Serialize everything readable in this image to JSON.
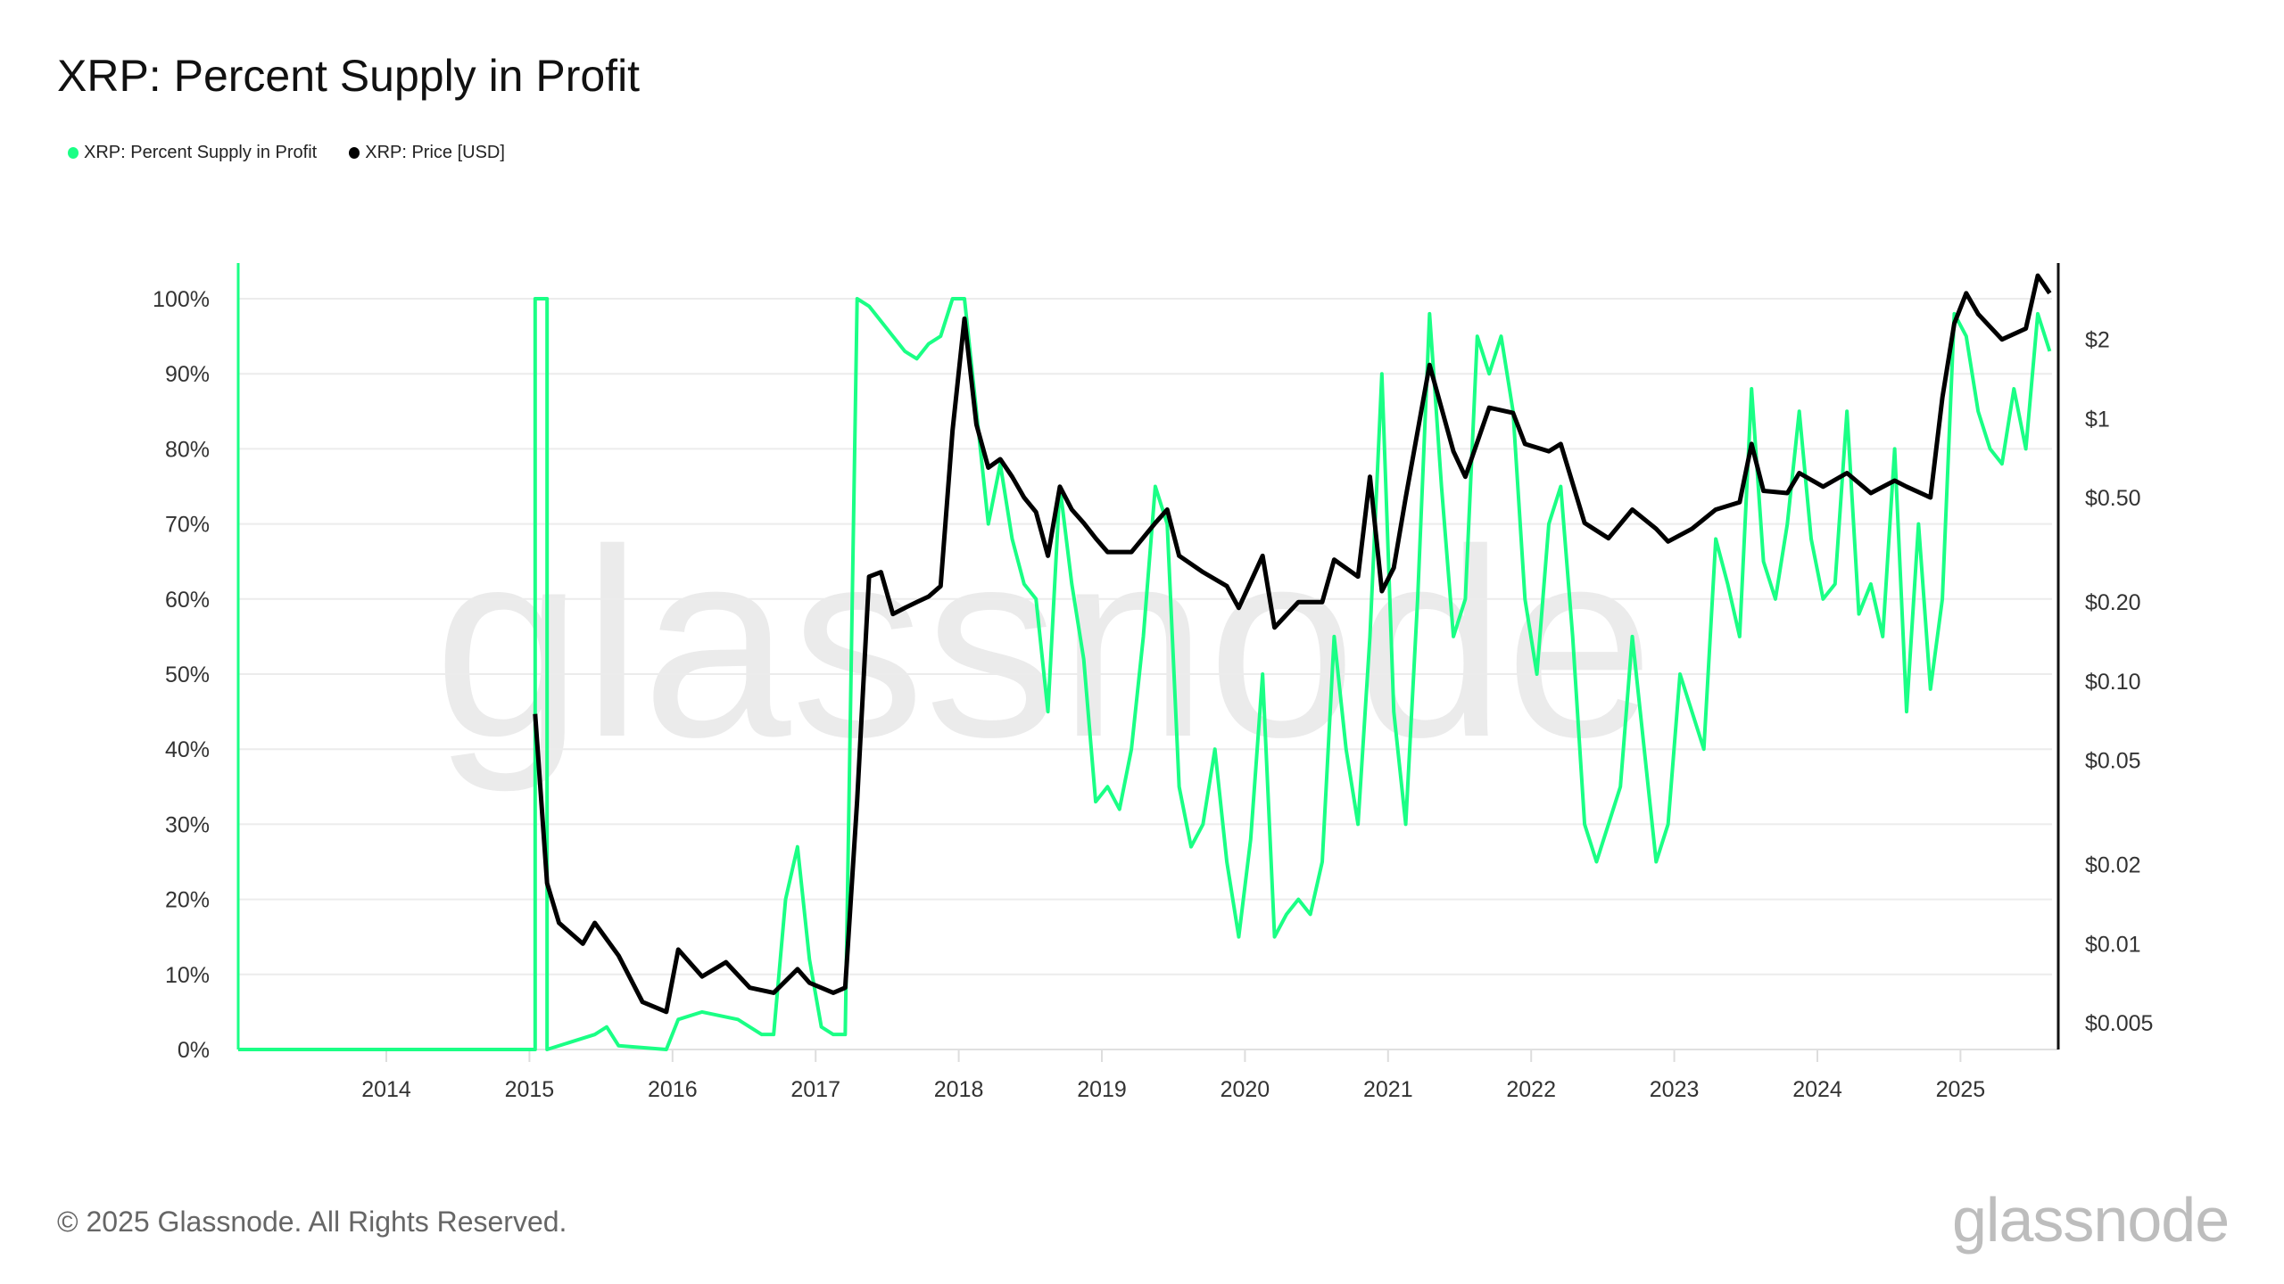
{
  "title": "XRP: Percent Supply in Profit",
  "legend": [
    {
      "label": "XRP: Percent Supply in Profit",
      "color": "#1aff85"
    },
    {
      "label": "XRP: Price [USD]",
      "color": "#000000"
    }
  ],
  "footer": "© 2025 Glassnode. All Rights Reserved.",
  "logo": "glassnode",
  "watermark": "glassnode",
  "chart_data": {
    "type": "line",
    "title": "XRP: Percent Supply in Profit",
    "grid": true,
    "legend_position": "top-left",
    "x_ticks": [
      "2014",
      "2015",
      "2016",
      "2017",
      "2018",
      "2019",
      "2020",
      "2021",
      "2022",
      "2023",
      "2024",
      "2025"
    ],
    "y_left": {
      "ticks": [
        "0%",
        "10%",
        "20%",
        "30%",
        "40%",
        "50%",
        "60%",
        "70%",
        "80%",
        "90%",
        "100%"
      ],
      "range": [
        0,
        100
      ],
      "scale": "linear"
    },
    "y_right": {
      "ticks": [
        {
          "label": "$0.005",
          "value": 0.005
        },
        {
          "label": "$0.01",
          "value": 0.01
        },
        {
          "label": "$0.02",
          "value": 0.02
        },
        {
          "label": "$0.05",
          "value": 0.05
        },
        {
          "label": "$0.10",
          "value": 0.1
        },
        {
          "label": "$0.20",
          "value": 0.2
        },
        {
          "label": "$0.50",
          "value": 0.5
        },
        {
          "label": "$1",
          "value": 1
        },
        {
          "label": "$2",
          "value": 2
        }
      ],
      "scale": "log"
    },
    "series": [
      {
        "name": "XRP: Percent Supply in Profit",
        "axis": "left",
        "color": "#1aff85",
        "points": [
          [
            "2013-01",
            0
          ],
          [
            "2014-06",
            0
          ],
          [
            "2015-01",
            0
          ],
          [
            "2015-01",
            100
          ],
          [
            "2015-02",
            100
          ],
          [
            "2015-02",
            0
          ],
          [
            "2015-06",
            2
          ],
          [
            "2015-07",
            3
          ],
          [
            "2015-08",
            0.5
          ],
          [
            "2015-12",
            0
          ],
          [
            "2016-01",
            4
          ],
          [
            "2016-03",
            5
          ],
          [
            "2016-06",
            4
          ],
          [
            "2016-08",
            2
          ],
          [
            "2016-09",
            2
          ],
          [
            "2016-10",
            20
          ],
          [
            "2016-11",
            27
          ],
          [
            "2016-12",
            12
          ],
          [
            "2017-01",
            3
          ],
          [
            "2017-02",
            2
          ],
          [
            "2017-03",
            2
          ],
          [
            "2017-04",
            100
          ],
          [
            "2017-05",
            99
          ],
          [
            "2017-06",
            97
          ],
          [
            "2017-07",
            95
          ],
          [
            "2017-08",
            93
          ],
          [
            "2017-09",
            92
          ],
          [
            "2017-10",
            94
          ],
          [
            "2017-11",
            95
          ],
          [
            "2017-12",
            100
          ],
          [
            "2018-01",
            100
          ],
          [
            "2018-02",
            85
          ],
          [
            "2018-03",
            70
          ],
          [
            "2018-04",
            78
          ],
          [
            "2018-05",
            68
          ],
          [
            "2018-06",
            62
          ],
          [
            "2018-07",
            60
          ],
          [
            "2018-08",
            45
          ],
          [
            "2018-09",
            75
          ],
          [
            "2018-10",
            62
          ],
          [
            "2018-11",
            52
          ],
          [
            "2018-12",
            33
          ],
          [
            "2019-01",
            35
          ],
          [
            "2019-02",
            32
          ],
          [
            "2019-03",
            40
          ],
          [
            "2019-04",
            55
          ],
          [
            "2019-05",
            75
          ],
          [
            "2019-06",
            70
          ],
          [
            "2019-07",
            35
          ],
          [
            "2019-08",
            27
          ],
          [
            "2019-09",
            30
          ],
          [
            "2019-10",
            40
          ],
          [
            "2019-11",
            25
          ],
          [
            "2019-12",
            15
          ],
          [
            "2020-01",
            28
          ],
          [
            "2020-02",
            50
          ],
          [
            "2020-03",
            15
          ],
          [
            "2020-04",
            18
          ],
          [
            "2020-05",
            20
          ],
          [
            "2020-06",
            18
          ],
          [
            "2020-07",
            25
          ],
          [
            "2020-08",
            55
          ],
          [
            "2020-09",
            40
          ],
          [
            "2020-10",
            30
          ],
          [
            "2020-11",
            55
          ],
          [
            "2020-12",
            90
          ],
          [
            "2021-01",
            45
          ],
          [
            "2021-02",
            30
          ],
          [
            "2021-03",
            60
          ],
          [
            "2021-04",
            98
          ],
          [
            "2021-05",
            75
          ],
          [
            "2021-06",
            55
          ],
          [
            "2021-07",
            60
          ],
          [
            "2021-08",
            95
          ],
          [
            "2021-09",
            90
          ],
          [
            "2021-10",
            95
          ],
          [
            "2021-11",
            85
          ],
          [
            "2021-12",
            60
          ],
          [
            "2022-01",
            50
          ],
          [
            "2022-02",
            70
          ],
          [
            "2022-03",
            75
          ],
          [
            "2022-04",
            55
          ],
          [
            "2022-05",
            30
          ],
          [
            "2022-06",
            25
          ],
          [
            "2022-07",
            30
          ],
          [
            "2022-08",
            35
          ],
          [
            "2022-09",
            55
          ],
          [
            "2022-10",
            40
          ],
          [
            "2022-11",
            25
          ],
          [
            "2022-12",
            30
          ],
          [
            "2023-01",
            50
          ],
          [
            "2023-02",
            45
          ],
          [
            "2023-03",
            40
          ],
          [
            "2023-04",
            68
          ],
          [
            "2023-05",
            62
          ],
          [
            "2023-06",
            55
          ],
          [
            "2023-07",
            88
          ],
          [
            "2023-08",
            65
          ],
          [
            "2023-09",
            60
          ],
          [
            "2023-10",
            70
          ],
          [
            "2023-11",
            85
          ],
          [
            "2023-12",
            68
          ],
          [
            "2024-01",
            60
          ],
          [
            "2024-02",
            62
          ],
          [
            "2024-03",
            85
          ],
          [
            "2024-04",
            58
          ],
          [
            "2024-05",
            62
          ],
          [
            "2024-06",
            55
          ],
          [
            "2024-07",
            80
          ],
          [
            "2024-08",
            45
          ],
          [
            "2024-09",
            70
          ],
          [
            "2024-10",
            48
          ],
          [
            "2024-11",
            60
          ],
          [
            "2024-12",
            98
          ],
          [
            "2025-01",
            95
          ],
          [
            "2025-02",
            85
          ],
          [
            "2025-03",
            80
          ],
          [
            "2025-04",
            78
          ],
          [
            "2025-05",
            88
          ],
          [
            "2025-06",
            80
          ],
          [
            "2025-07",
            98
          ],
          [
            "2025-08",
            93
          ]
        ]
      },
      {
        "name": "XRP: Price [USD]",
        "axis": "right",
        "color": "#000000",
        "points": [
          [
            "2015-01",
            0.075
          ],
          [
            "2015-02",
            0.017
          ],
          [
            "2015-03",
            0.012
          ],
          [
            "2015-05",
            0.01
          ],
          [
            "2015-06",
            0.012
          ],
          [
            "2015-08",
            0.009
          ],
          [
            "2015-10",
            0.006
          ],
          [
            "2015-12",
            0.0055
          ],
          [
            "2016-01",
            0.0095
          ],
          [
            "2016-03",
            0.0075
          ],
          [
            "2016-05",
            0.0085
          ],
          [
            "2016-07",
            0.0068
          ],
          [
            "2016-09",
            0.0065
          ],
          [
            "2016-11",
            0.008
          ],
          [
            "2016-12",
            0.0071
          ],
          [
            "2017-02",
            0.0065
          ],
          [
            "2017-03",
            0.0068
          ],
          [
            "2017-04",
            0.035
          ],
          [
            "2017-05",
            0.25
          ],
          [
            "2017-06",
            0.26
          ],
          [
            "2017-07",
            0.18
          ],
          [
            "2017-08",
            0.19
          ],
          [
            "2017-09",
            0.2
          ],
          [
            "2017-10",
            0.21
          ],
          [
            "2017-11",
            0.23
          ],
          [
            "2017-12",
            0.9
          ],
          [
            "2018-01",
            2.4
          ],
          [
            "2018-02",
            0.95
          ],
          [
            "2018-03",
            0.65
          ],
          [
            "2018-04",
            0.7
          ],
          [
            "2018-05",
            0.6
          ],
          [
            "2018-06",
            0.5
          ],
          [
            "2018-07",
            0.44
          ],
          [
            "2018-08",
            0.3
          ],
          [
            "2018-09",
            0.55
          ],
          [
            "2018-10",
            0.45
          ],
          [
            "2018-11",
            0.4
          ],
          [
            "2018-12",
            0.35
          ],
          [
            "2019-01",
            0.31
          ],
          [
            "2019-03",
            0.31
          ],
          [
            "2019-05",
            0.4
          ],
          [
            "2019-06",
            0.45
          ],
          [
            "2019-07",
            0.3
          ],
          [
            "2019-09",
            0.26
          ],
          [
            "2019-11",
            0.23
          ],
          [
            "2019-12",
            0.19
          ],
          [
            "2020-02",
            0.3
          ],
          [
            "2020-03",
            0.16
          ],
          [
            "2020-05",
            0.2
          ],
          [
            "2020-07",
            0.2
          ],
          [
            "2020-08",
            0.29
          ],
          [
            "2020-10",
            0.25
          ],
          [
            "2020-11",
            0.6
          ],
          [
            "2020-12",
            0.22
          ],
          [
            "2021-01",
            0.27
          ],
          [
            "2021-02",
            0.5
          ],
          [
            "2021-04",
            1.6
          ],
          [
            "2021-06",
            0.75
          ],
          [
            "2021-07",
            0.6
          ],
          [
            "2021-09",
            1.1
          ],
          [
            "2021-11",
            1.05
          ],
          [
            "2021-12",
            0.8
          ],
          [
            "2022-02",
            0.75
          ],
          [
            "2022-03",
            0.8
          ],
          [
            "2022-05",
            0.4
          ],
          [
            "2022-07",
            0.35
          ],
          [
            "2022-09",
            0.45
          ],
          [
            "2022-11",
            0.38
          ],
          [
            "2022-12",
            0.34
          ],
          [
            "2023-02",
            0.38
          ],
          [
            "2023-04",
            0.45
          ],
          [
            "2023-06",
            0.48
          ],
          [
            "2023-07",
            0.8
          ],
          [
            "2023-08",
            0.53
          ],
          [
            "2023-10",
            0.52
          ],
          [
            "2023-11",
            0.62
          ],
          [
            "2024-01",
            0.55
          ],
          [
            "2024-03",
            0.62
          ],
          [
            "2024-05",
            0.52
          ],
          [
            "2024-07",
            0.58
          ],
          [
            "2024-08",
            0.55
          ],
          [
            "2024-10",
            0.5
          ],
          [
            "2024-11",
            1.2
          ],
          [
            "2024-12",
            2.3
          ],
          [
            "2025-01",
            3.0
          ],
          [
            "2025-02",
            2.5
          ],
          [
            "2025-04",
            2.0
          ],
          [
            "2025-06",
            2.2
          ],
          [
            "2025-07",
            3.5
          ],
          [
            "2025-08",
            3.0
          ]
        ]
      }
    ]
  }
}
